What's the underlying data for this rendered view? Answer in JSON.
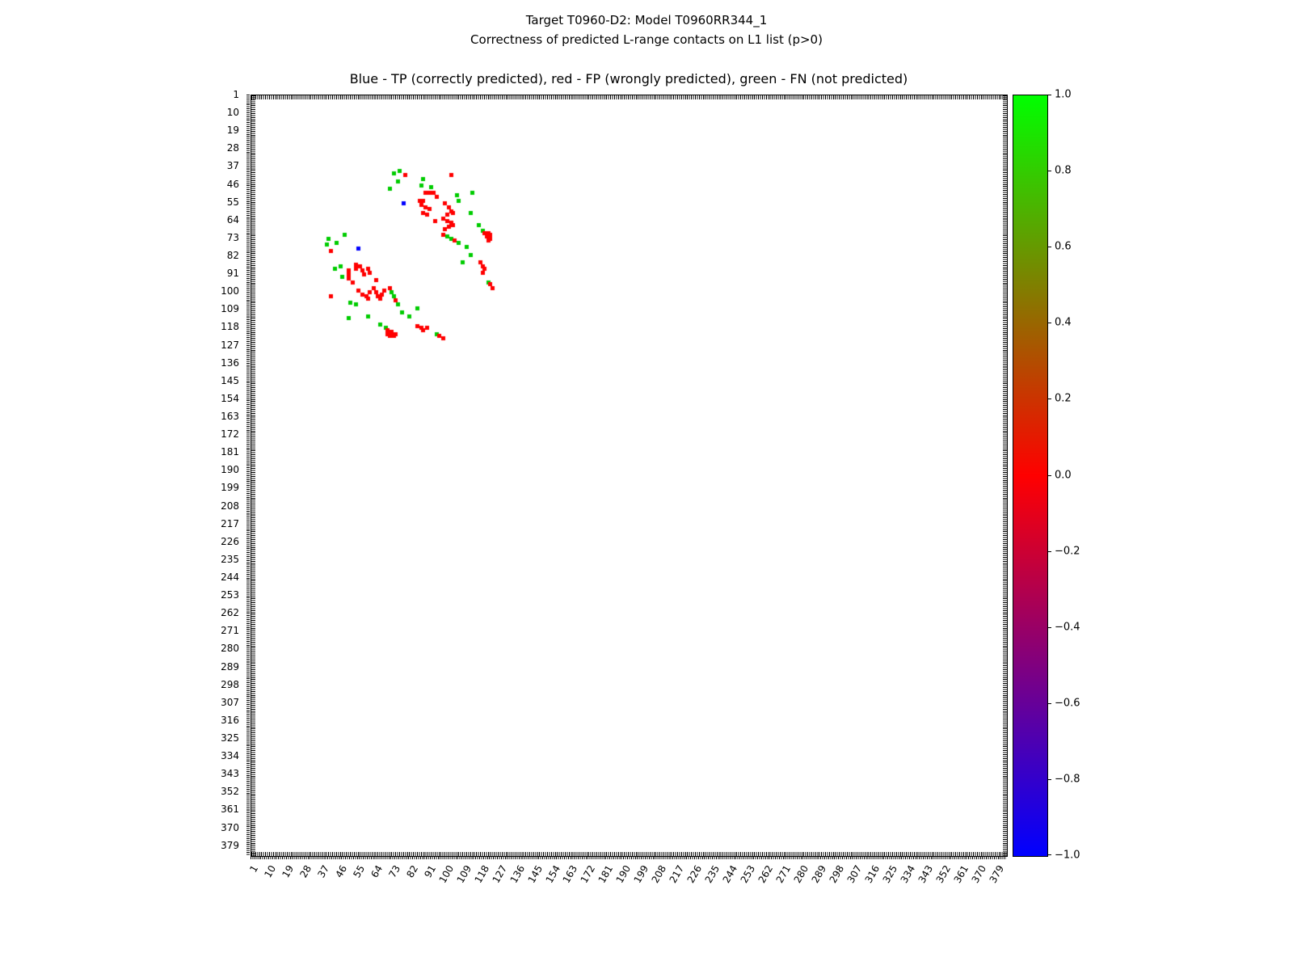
{
  "figure": {
    "suptitle_line1": "Target T0960-D2: Model T0960RR344_1",
    "suptitle_line2": "Correctness of predicted L-range contacts on L1 list (p>0)",
    "axes_title": "Blue - TP (correctly predicted), red - FP (wrongly predicted), green - FN (not predicted)"
  },
  "chart_data": {
    "type": "scatter",
    "title": "Blue - TP (correctly predicted), red - FP (wrongly predicted), green - FN (not predicted)",
    "suptitle": "Target T0960-D2: Model T0960RR344_1 — Correctness of predicted L-range contacts on L1 list (p>0)",
    "xlabel": "",
    "ylabel": "",
    "axis_min": 1,
    "axis_max": 384,
    "y_axis_inverted": true,
    "grid": false,
    "marker_size_px": 5,
    "tick_labels": [
      1,
      10,
      19,
      28,
      37,
      46,
      55,
      64,
      73,
      82,
      91,
      100,
      109,
      118,
      127,
      136,
      145,
      154,
      163,
      172,
      181,
      190,
      199,
      208,
      217,
      226,
      235,
      244,
      253,
      262,
      271,
      280,
      289,
      298,
      307,
      316,
      325,
      334,
      343,
      352,
      361,
      370,
      379
    ],
    "classes": {
      "TP": {
        "label": "TP (correctly predicted)",
        "color": "#0000ff"
      },
      "FP": {
        "label": "FP (wrongly predicted)",
        "color": "#ff0000"
      },
      "FN": {
        "label": "FN (not predicted)",
        "color": "#00cc00"
      }
    },
    "symmetric": true,
    "contacts": [
      [
        39,
        76,
        "FN"
      ],
      [
        40,
        73,
        "FN"
      ],
      [
        41,
        79,
        "FP"
      ],
      [
        41,
        102,
        "FP"
      ],
      [
        44,
        75,
        "FN"
      ],
      [
        46,
        87,
        "FN"
      ],
      [
        48,
        71,
        "FN"
      ],
      [
        50,
        89,
        "FP"
      ],
      [
        50,
        91,
        "FP"
      ],
      [
        50,
        93,
        "FP"
      ],
      [
        50,
        113,
        "FN"
      ],
      [
        51,
        105,
        "FN"
      ],
      [
        52,
        95,
        "FP"
      ],
      [
        43,
        88,
        "FN"
      ],
      [
        47,
        92,
        "FN"
      ],
      [
        54,
        86,
        "FP"
      ],
      [
        54,
        88,
        "FP"
      ],
      [
        54,
        106,
        "FN"
      ],
      [
        55,
        78,
        "TP"
      ],
      [
        55,
        99,
        "FP"
      ],
      [
        56,
        87,
        "FP"
      ],
      [
        57,
        89,
        "FP"
      ],
      [
        57,
        101,
        "FP"
      ],
      [
        58,
        91,
        "FP"
      ],
      [
        59,
        102,
        "FP"
      ],
      [
        60,
        88,
        "FP"
      ],
      [
        60,
        103,
        "FP"
      ],
      [
        60,
        112,
        "FN"
      ],
      [
        61,
        90,
        "FP"
      ],
      [
        61,
        100,
        "FP"
      ],
      [
        63,
        98,
        "FP"
      ],
      [
        64,
        94,
        "FP"
      ],
      [
        64,
        100,
        "FP"
      ],
      [
        65,
        102,
        "FP"
      ],
      [
        66,
        103,
        "FP"
      ],
      [
        66,
        116,
        "FN"
      ],
      [
        67,
        101,
        "FP"
      ],
      [
        68,
        99,
        "FP"
      ],
      [
        69,
        118,
        "FN"
      ],
      [
        70,
        119,
        "FP"
      ],
      [
        70,
        121,
        "FP"
      ],
      [
        71,
        98,
        "FP"
      ],
      [
        71,
        122,
        "FP"
      ],
      [
        72,
        100,
        "FN"
      ],
      [
        72,
        120,
        "FP"
      ],
      [
        73,
        102,
        "FN"
      ],
      [
        73,
        122,
        "FP"
      ],
      [
        74,
        104,
        "FP"
      ],
      [
        74,
        121,
        "FP"
      ],
      [
        75,
        106,
        "FN"
      ],
      [
        77,
        110,
        "FN"
      ],
      [
        81,
        112,
        "FN"
      ],
      [
        85,
        108,
        "FN"
      ],
      [
        85,
        117,
        "FP"
      ],
      [
        87,
        118,
        "FP"
      ],
      [
        88,
        119,
        "FP"
      ],
      [
        90,
        118,
        "FP"
      ],
      [
        95,
        121,
        "FN"
      ],
      [
        96,
        122,
        "FP"
      ],
      [
        98,
        123,
        "FP"
      ]
    ],
    "colorbar": {
      "min": -1.0,
      "max": 1.0,
      "gradient_stops": [
        {
          "value": -1.0,
          "color": "#0000ff"
        },
        {
          "value": 0.0,
          "color": "#ff0000"
        },
        {
          "value": 1.0,
          "color": "#00ff00"
        }
      ],
      "ticks": [
        {
          "value": 1.0,
          "label": "1.0"
        },
        {
          "value": 0.8,
          "label": "0.8"
        },
        {
          "value": 0.6,
          "label": "0.6"
        },
        {
          "value": 0.4,
          "label": "0.4"
        },
        {
          "value": 0.2,
          "label": "0.2"
        },
        {
          "value": 0.0,
          "label": "0.0"
        },
        {
          "value": -0.2,
          "label": "−0.2"
        },
        {
          "value": -0.4,
          "label": "−0.4"
        },
        {
          "value": -0.6,
          "label": "−0.6"
        },
        {
          "value": -0.8,
          "label": "−0.8"
        },
        {
          "value": -1.0,
          "label": "−1.0"
        }
      ]
    }
  }
}
